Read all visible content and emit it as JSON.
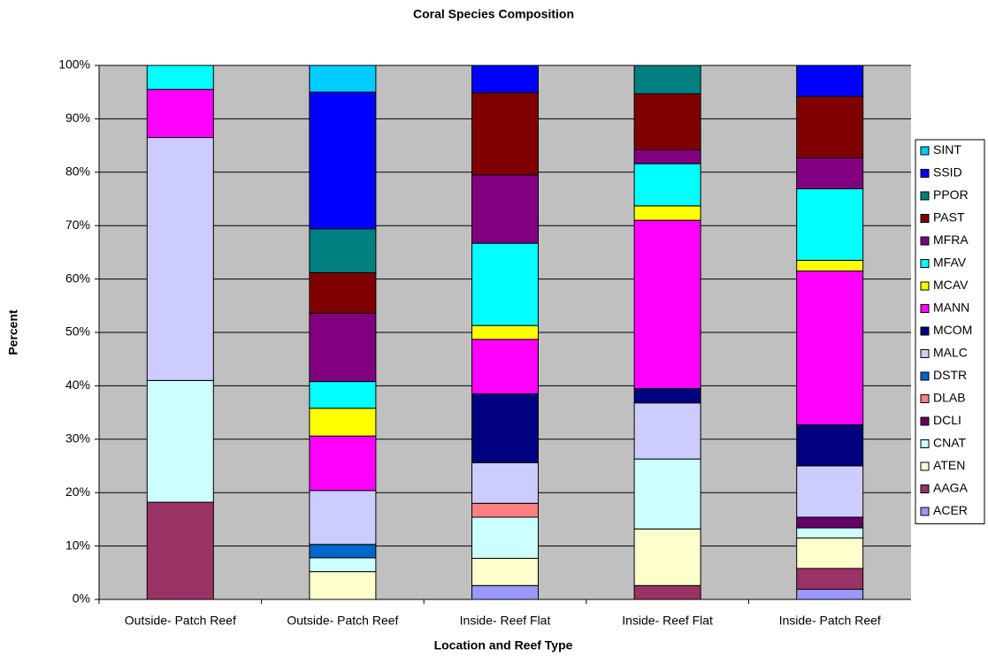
{
  "chart_data": {
    "type": "stacked-bar",
    "title": "Coral Species Composition",
    "x_label": "Location and Reef Type",
    "y_label": "Percent",
    "categories": [
      "Outside- Patch Reef",
      "Outside- Patch Reef",
      "Inside- Reef Flat",
      "Inside- Reef Flat",
      "Inside- Patch Reef"
    ],
    "ylim": [
      0,
      100
    ],
    "yticks": [
      {
        "value": 0,
        "label": "0%"
      },
      {
        "value": 10,
        "label": "10%"
      },
      {
        "value": 20,
        "label": "20%"
      },
      {
        "value": 30,
        "label": "30%"
      },
      {
        "value": 40,
        "label": "40%"
      },
      {
        "value": 50,
        "label": "50%"
      },
      {
        "value": 60,
        "label": "60%"
      },
      {
        "value": 70,
        "label": "70%"
      },
      {
        "value": 80,
        "label": "80%"
      },
      {
        "value": 90,
        "label": "90%"
      },
      {
        "value": 100,
        "label": "100%"
      }
    ],
    "grid": true,
    "legend": "right",
    "background": "#c0c0c0",
    "series": [
      {
        "name": "ACER",
        "color": "#9999ff",
        "values": [
          0,
          0,
          2.6,
          0,
          1.9
        ]
      },
      {
        "name": "AAGA",
        "color": "#993366",
        "values": [
          18.2,
          0,
          0,
          2.6,
          3.9
        ]
      },
      {
        "name": "ATEN",
        "color": "#ffffcc",
        "values": [
          0,
          5.2,
          5.1,
          10.6,
          5.7
        ]
      },
      {
        "name": "CNAT",
        "color": "#ccffff",
        "values": [
          22.8,
          2.6,
          7.7,
          13.1,
          1.9
        ]
      },
      {
        "name": "DCLI",
        "color": "#660066",
        "values": [
          0,
          0,
          0,
          0,
          2.0
        ]
      },
      {
        "name": "DLAB",
        "color": "#ff8080",
        "values": [
          0,
          0,
          2.6,
          0,
          0
        ]
      },
      {
        "name": "DSTR",
        "color": "#0066cc",
        "values": [
          0,
          2.5,
          0,
          0,
          0
        ]
      },
      {
        "name": "MALC",
        "color": "#ccccff",
        "values": [
          45.5,
          10.1,
          7.6,
          10.5,
          9.6
        ]
      },
      {
        "name": "MCOM",
        "color": "#000080",
        "values": [
          0,
          0,
          12.9,
          2.7,
          7.7
        ]
      },
      {
        "name": "MANN",
        "color": "#ff00ff",
        "values": [
          9.0,
          10.2,
          10.2,
          31.5,
          28.8
        ]
      },
      {
        "name": "MCAV",
        "color": "#ffff00",
        "values": [
          0,
          5.2,
          2.6,
          2.7,
          2.0
        ]
      },
      {
        "name": "MFAV",
        "color": "#00ffff",
        "values": [
          4.5,
          5.0,
          15.4,
          7.9,
          13.4
        ]
      },
      {
        "name": "MFRA",
        "color": "#800080",
        "values": [
          0,
          12.8,
          12.8,
          2.6,
          5.8
        ]
      },
      {
        "name": "PAST",
        "color": "#800000",
        "values": [
          0,
          7.6,
          15.4,
          10.5,
          11.5
        ]
      },
      {
        "name": "PPOR",
        "color": "#008080",
        "values": [
          0,
          8.2,
          0,
          5.3,
          0
        ]
      },
      {
        "name": "SSID",
        "color": "#0000ff",
        "values": [
          0,
          25.6,
          5.1,
          0,
          5.8
        ]
      },
      {
        "name": "SINT",
        "color": "#00ccff",
        "values": [
          0,
          5.0,
          0,
          0,
          0
        ]
      }
    ]
  }
}
